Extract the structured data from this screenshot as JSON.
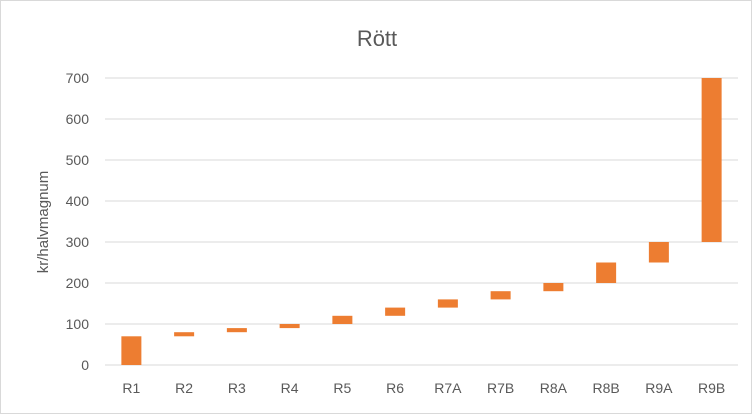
{
  "chart_data": {
    "type": "bar",
    "title": "Rött",
    "xlabel": "",
    "ylabel": "kr/halvmagnum",
    "ylim": [
      0,
      700
    ],
    "yticks": [
      0,
      100,
      200,
      300,
      400,
      500,
      600,
      700
    ],
    "grid": true,
    "legend": "none",
    "bar_color": "#ED7D31",
    "categories": [
      "R1",
      "R2",
      "R3",
      "R4",
      "R5",
      "R6",
      "R7A",
      "R7B",
      "R8A",
      "R8B",
      "R9A",
      "R9B"
    ],
    "series": [
      {
        "low": [
          0,
          70,
          80,
          90,
          100,
          120,
          140,
          160,
          180,
          200,
          250,
          300
        ],
        "high": [
          70,
          80,
          90,
          100,
          120,
          140,
          160,
          180,
          200,
          250,
          300,
          700
        ]
      }
    ]
  }
}
